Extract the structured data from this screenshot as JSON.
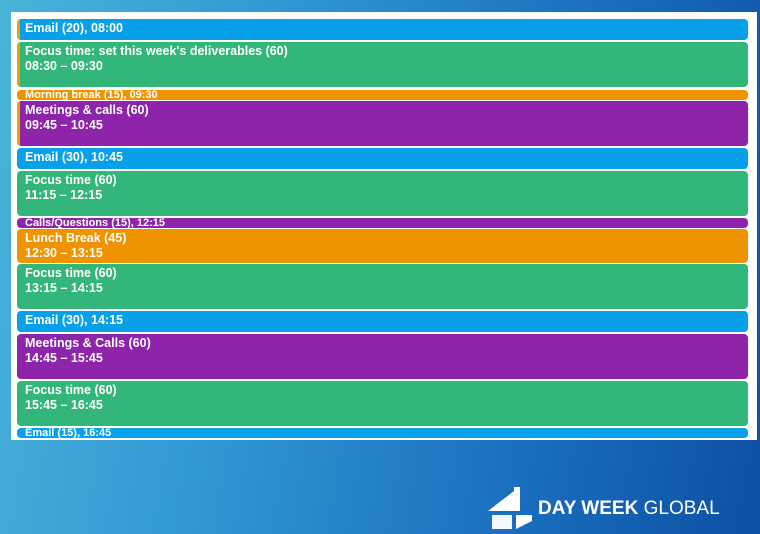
{
  "events": [
    {
      "title": "Email (20), 08:00",
      "time": ""
    },
    {
      "title": "Focus time: set this week's deliverables (60)",
      "time": "08:30 – 09:30"
    },
    {
      "title": "Morning break (15), 09:30",
      "time": ""
    },
    {
      "title": "Meetings & calls (60)",
      "time": "09:45 – 10:45"
    },
    {
      "title": "Email (30), 10:45",
      "time": ""
    },
    {
      "title": "Focus time (60)",
      "time": "11:15 – 12:15"
    },
    {
      "title": "Calls/Questions (15), 12:15",
      "time": ""
    },
    {
      "title": "Lunch Break (45)",
      "time": "12:30 – 13:15"
    },
    {
      "title": "Focus time (60)",
      "time": "13:15 – 14:15"
    },
    {
      "title": "Email (30), 14:15",
      "time": ""
    },
    {
      "title": "Meetings & Calls (60)",
      "time": "14:45 – 15:45"
    },
    {
      "title": "Focus time (60)",
      "time": "15:45 – 16:45"
    },
    {
      "title": "Email (15), 16:45",
      "time": ""
    }
  ],
  "colors": {
    "email": "#08a0e8",
    "focus": "#33b679",
    "meetings": "#8e24aa",
    "break": "#f09300",
    "accent": "#f0a000"
  },
  "logo": {
    "bold": "DAY WEEK",
    "light": "GLOBAL",
    "icon": "four-logo-icon"
  }
}
